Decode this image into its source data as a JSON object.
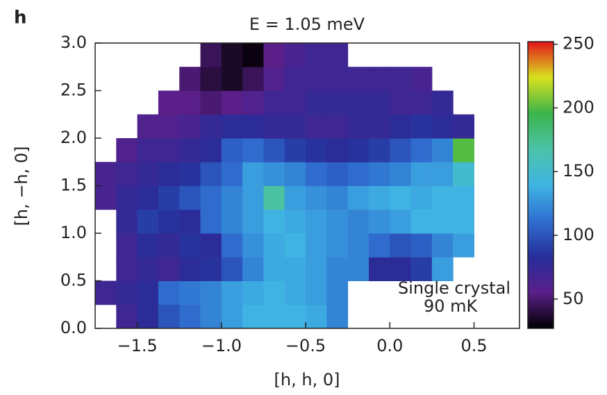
{
  "chart_data": {
    "type": "heatmap",
    "panel_label": "h",
    "title": "E = 1.05 meV",
    "x_label": "[h, h, 0]",
    "y_label": "[h, −h, 0]",
    "annotation": [
      "Single crystal",
      "90 mK"
    ],
    "xbins": [
      -1.75,
      -1.625,
      -1.5,
      -1.375,
      -1.25,
      -1.125,
      -1.0,
      -0.875,
      -0.75,
      -0.625,
      -0.5,
      -0.375,
      -0.25,
      -0.125,
      0.0,
      0.125,
      0.25,
      0.375,
      0.5,
      0.625,
      0.75
    ],
    "ybins": [
      0,
      0.25,
      0.5,
      0.75,
      1.0,
      1.25,
      1.5,
      1.75,
      2.0,
      2.25,
      2.5,
      2.75,
      3.0
    ],
    "values": [
      [
        null,
        70,
        80,
        100,
        110,
        120,
        130,
        140,
        140,
        140,
        135,
        120,
        null,
        null,
        null,
        null,
        null,
        null,
        null,
        null
      ],
      [
        70,
        75,
        80,
        110,
        115,
        120,
        130,
        135,
        140,
        135,
        130,
        120,
        null,
        null,
        null,
        null,
        null,
        null,
        null,
        null
      ],
      [
        null,
        70,
        75,
        70,
        80,
        85,
        100,
        120,
        135,
        135,
        130,
        120,
        120,
        80,
        80,
        90,
        130,
        null,
        null,
        null
      ],
      [
        null,
        70,
        80,
        75,
        85,
        80,
        110,
        125,
        135,
        140,
        130,
        125,
        120,
        110,
        100,
        105,
        120,
        130,
        null,
        null
      ],
      [
        null,
        75,
        90,
        85,
        80,
        110,
        120,
        130,
        140,
        135,
        130,
        125,
        120,
        125,
        130,
        140,
        140,
        140,
        null,
        null
      ],
      [
        65,
        75,
        80,
        90,
        100,
        110,
        120,
        130,
        170,
        130,
        125,
        120,
        130,
        135,
        140,
        135,
        140,
        140,
        null,
        null
      ],
      [
        65,
        70,
        75,
        80,
        85,
        100,
        110,
        130,
        125,
        120,
        110,
        105,
        110,
        115,
        120,
        130,
        130,
        150,
        null,
        null
      ],
      [
        null,
        60,
        70,
        70,
        75,
        80,
        105,
        110,
        100,
        90,
        85,
        80,
        85,
        90,
        100,
        110,
        120,
        200,
        null,
        null
      ],
      [
        null,
        null,
        60,
        60,
        65,
        75,
        80,
        80,
        75,
        75,
        70,
        70,
        75,
        75,
        80,
        85,
        80,
        75,
        null,
        null
      ],
      [
        null,
        null,
        null,
        55,
        55,
        50,
        55,
        60,
        70,
        70,
        75,
        75,
        75,
        75,
        70,
        70,
        75,
        null,
        null,
        null
      ],
      [
        null,
        null,
        null,
        null,
        50,
        40,
        35,
        45,
        60,
        70,
        70,
        70,
        70,
        70,
        70,
        65,
        null,
        null,
        null,
        null
      ],
      [
        null,
        null,
        null,
        null,
        null,
        45,
        35,
        30,
        55,
        65,
        70,
        70,
        null,
        null,
        null,
        null,
        null,
        null,
        null,
        null
      ]
    ],
    "xlim": [
      -1.75,
      0.77
    ],
    "ylim": [
      0,
      3
    ],
    "xticks": [
      {
        "value": -1.5,
        "label": "−1.5"
      },
      {
        "value": -1.0,
        "label": "−1.0"
      },
      {
        "value": -0.5,
        "label": "−0.5"
      },
      {
        "value": 0.0,
        "label": "0.0"
      },
      {
        "value": 0.5,
        "label": "0.5"
      }
    ],
    "yticks": [
      {
        "value": 0,
        "label": "0.0"
      },
      0.5,
      {
        "value": 1,
        "label": "1.0"
      },
      1.5,
      {
        "value": 2,
        "label": "2.0"
      },
      2.5,
      {
        "value": 3,
        "label": "3.0"
      }
    ],
    "clim": [
      27,
      252
    ],
    "cticks": [
      50,
      100,
      150,
      200,
      250
    ],
    "colorscale": [
      "#000000",
      "#5a1f8a",
      "#262e9a",
      "#2f6fd0",
      "#3fb4e4",
      "#4cc3a8",
      "#3cb44a",
      "#d8e01e",
      "#e2141c"
    ]
  }
}
